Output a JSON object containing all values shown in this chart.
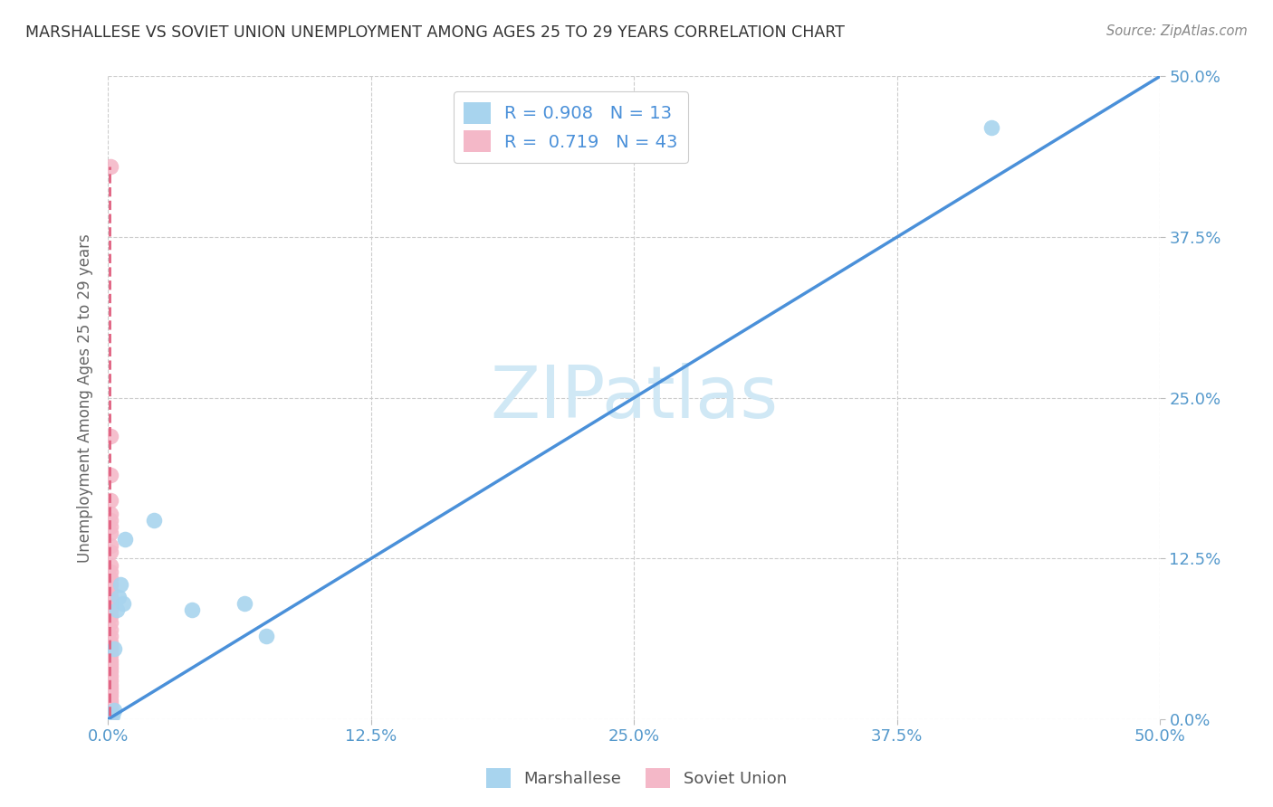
{
  "title": "MARSHALLESE VS SOVIET UNION UNEMPLOYMENT AMONG AGES 25 TO 29 YEARS CORRELATION CHART",
  "source": "Source: ZipAtlas.com",
  "ylabel_label": "Unemployment Among Ages 25 to 29 years",
  "xlim": [
    0.0,
    0.5
  ],
  "ylim": [
    0.0,
    0.5
  ],
  "xticks": [
    0.0,
    0.125,
    0.25,
    0.375,
    0.5
  ],
  "yticks": [
    0.0,
    0.125,
    0.25,
    0.375,
    0.5
  ],
  "xtick_labels": [
    "0.0%",
    "12.5%",
    "25.0%",
    "37.5%",
    "50.0%"
  ],
  "ytick_labels": [
    "0.0%",
    "12.5%",
    "25.0%",
    "37.5%",
    "50.0%"
  ],
  "marshallese_color": "#a8d4ee",
  "soviet_color": "#f4b8c8",
  "trendline_blue": "#4a90d9",
  "trendline_pink": "#e06080",
  "title_color": "#333333",
  "axis_label_color": "#666666",
  "tick_label_color": "#5599cc",
  "legend_R_color": "#4a90d9",
  "watermark_color": "#d0e8f5",
  "R_marshallese": "0.908",
  "N_marshallese": "13",
  "R_soviet": "0.719",
  "N_soviet": "43",
  "marshallese_x": [
    0.002,
    0.003,
    0.003,
    0.004,
    0.005,
    0.006,
    0.007,
    0.008,
    0.022,
    0.04,
    0.065,
    0.075,
    0.42
  ],
  "marshallese_y": [
    0.003,
    0.007,
    0.055,
    0.085,
    0.095,
    0.105,
    0.09,
    0.14,
    0.155,
    0.085,
    0.09,
    0.065,
    0.46
  ],
  "soviet_x": [
    0.001,
    0.001,
    0.001,
    0.001,
    0.001,
    0.001,
    0.001,
    0.001,
    0.001,
    0.001,
    0.001,
    0.001,
    0.001,
    0.001,
    0.001,
    0.001,
    0.001,
    0.001,
    0.001,
    0.001,
    0.001,
    0.001,
    0.001,
    0.001,
    0.001,
    0.001,
    0.001,
    0.001,
    0.001,
    0.001,
    0.001,
    0.001,
    0.001,
    0.001,
    0.001,
    0.001,
    0.001,
    0.001,
    0.001,
    0.001,
    0.001,
    0.001,
    0.001
  ],
  "soviet_y": [
    0.43,
    0.22,
    0.19,
    0.17,
    0.16,
    0.155,
    0.15,
    0.145,
    0.135,
    0.13,
    0.12,
    0.115,
    0.11,
    0.105,
    0.1,
    0.095,
    0.09,
    0.085,
    0.08,
    0.075,
    0.07,
    0.065,
    0.06,
    0.057,
    0.054,
    0.05,
    0.046,
    0.043,
    0.04,
    0.037,
    0.034,
    0.03,
    0.027,
    0.024,
    0.021,
    0.018,
    0.015,
    0.013,
    0.011,
    0.009,
    0.007,
    0.005,
    0.003
  ],
  "blue_line": [
    [
      0.0,
      -0.012
    ],
    [
      0.5,
      0.512
    ]
  ],
  "pink_line": [
    [
      0.0006,
      0.43
    ],
    [
      0.0006,
      0.003
    ]
  ]
}
